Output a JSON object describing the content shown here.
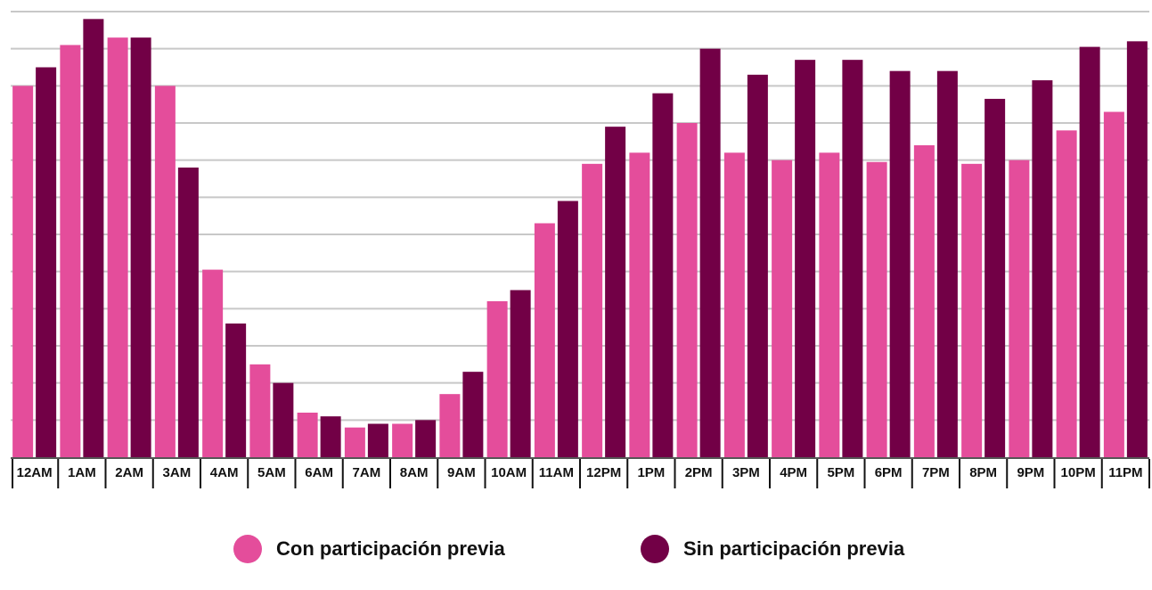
{
  "chart_data": {
    "type": "bar",
    "categories": [
      "12AM",
      "1AM",
      "2AM",
      "3AM",
      "4AM",
      "5AM",
      "6AM",
      "7AM",
      "8AM",
      "9AM",
      "10AM",
      "11AM",
      "12PM",
      "1PM",
      "2PM",
      "3PM",
      "4PM",
      "5PM",
      "6PM",
      "7PM",
      "8PM",
      "9PM",
      "10PM",
      "11PM"
    ],
    "series": [
      {
        "name": "Con participación previa",
        "color": "#e44d9b",
        "values": [
          10,
          11.1,
          11.3,
          10,
          5.05,
          2.5,
          1.2,
          0.8,
          0.9,
          1.7,
          4.2,
          6.3,
          7.9,
          8.2,
          9.0,
          8.2,
          8.0,
          8.2,
          7.95,
          8.4,
          7.9,
          8.0,
          8.8,
          9.3
        ]
      },
      {
        "name": "Sin participación previa",
        "color": "#720046",
        "values": [
          10.5,
          11.8,
          11.3,
          7.8,
          3.6,
          2.0,
          1.1,
          0.9,
          1.0,
          2.3,
          4.5,
          6.9,
          8.9,
          9.8,
          11.0,
          10.3,
          10.7,
          10.7,
          10.4,
          10.4,
          9.65,
          10.15,
          11.05,
          11.2
        ]
      }
    ],
    "ylim": [
      0,
      12
    ],
    "yticks": [
      1,
      2,
      3,
      4,
      5,
      6,
      7,
      8,
      9,
      10,
      11,
      12
    ],
    "grid": true
  }
}
